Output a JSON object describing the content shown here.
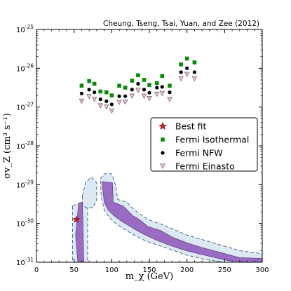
{
  "chart_data": {
    "type": "scatter",
    "title": "Cheung, Tseng, Tsai, Yuan, and Zee (2012)",
    "xlabel": "m_χ (GeV)",
    "ylabel": "σv_Z (cm³ s⁻¹)",
    "xlim": [
      0,
      300
    ],
    "ylim_log10": [
      -31,
      -25
    ],
    "y_scale": "log",
    "x_ticks": [
      0,
      50,
      100,
      150,
      200,
      250,
      300
    ],
    "y_ticks": [
      -31,
      -30,
      -29,
      -28,
      -27,
      -26,
      -25
    ],
    "legend_placement": "center-right",
    "grid": false,
    "series": [
      {
        "name": "Best fit",
        "marker": "star",
        "color": "#c81e1e",
        "points": [
          [
            53,
            -29.9
          ]
        ]
      },
      {
        "name": "Fermi Isothermal",
        "marker": "square",
        "color": "#0a8a0a",
        "points": [
          [
            60,
            -26.45
          ],
          [
            70,
            -26.33
          ],
          [
            77,
            -26.4
          ],
          [
            85,
            -26.6
          ],
          [
            93,
            -26.62
          ],
          [
            100,
            -26.7
          ],
          [
            110,
            -26.45
          ],
          [
            118,
            -26.5
          ],
          [
            127,
            -26.32
          ],
          [
            135,
            -26.18
          ],
          [
            143,
            -26.3
          ],
          [
            150,
            -26.43
          ],
          [
            160,
            -26.38
          ],
          [
            167,
            -26.2
          ],
          [
            177,
            -26.45
          ],
          [
            192,
            -25.9
          ],
          [
            200,
            -25.75
          ],
          [
            210,
            -25.85
          ]
        ]
      },
      {
        "name": "Fermi NFW",
        "marker": "circle",
        "color": "#000000",
        "points": [
          [
            60,
            -26.65
          ],
          [
            70,
            -26.55
          ],
          [
            77,
            -26.62
          ],
          [
            85,
            -26.8
          ],
          [
            93,
            -26.85
          ],
          [
            100,
            -26.93
          ],
          [
            110,
            -26.72
          ],
          [
            118,
            -26.72
          ],
          [
            127,
            -26.55
          ],
          [
            135,
            -26.4
          ],
          [
            143,
            -26.55
          ],
          [
            150,
            -26.63
          ],
          [
            160,
            -26.5
          ],
          [
            167,
            -26.48
          ],
          [
            177,
            -26.62
          ],
          [
            192,
            -26.1
          ],
          [
            200,
            -26.0
          ],
          [
            210,
            -26.1
          ]
        ]
      },
      {
        "name": "Fermi Einasto",
        "marker": "triangle-down",
        "color": "#f3b8cf",
        "points": [
          [
            60,
            -26.85
          ],
          [
            70,
            -26.73
          ],
          [
            77,
            -26.8
          ],
          [
            85,
            -26.97
          ],
          [
            93,
            -27.0
          ],
          [
            100,
            -27.1
          ],
          [
            110,
            -26.88
          ],
          [
            118,
            -26.87
          ],
          [
            127,
            -26.72
          ],
          [
            135,
            -26.57
          ],
          [
            143,
            -26.72
          ],
          [
            150,
            -26.78
          ],
          [
            160,
            -26.67
          ],
          [
            167,
            -26.65
          ],
          [
            177,
            -26.8
          ],
          [
            192,
            -26.27
          ],
          [
            200,
            -26.16
          ],
          [
            210,
            -26.27
          ]
        ]
      }
    ],
    "regions": [
      {
        "name": "allowed-region-left",
        "fill": "#9a6bc2",
        "points": [
          [
            52,
            -30.3
          ],
          [
            56,
            -29.48
          ],
          [
            61,
            -29.45
          ],
          [
            63,
            -31
          ],
          [
            55,
            -31
          ]
        ]
      },
      {
        "name": "allowed-region-right",
        "fill": "#9a6bc2",
        "points": [
          [
            87,
            -28.92
          ],
          [
            101,
            -28.95
          ],
          [
            102,
            -29.45
          ],
          [
            115,
            -29.55
          ],
          [
            122,
            -29.68
          ],
          [
            128,
            -29.8
          ],
          [
            133,
            -29.85
          ],
          [
            140,
            -29.95
          ],
          [
            148,
            -30.08
          ],
          [
            165,
            -30.18
          ],
          [
            180,
            -30.35
          ],
          [
            200,
            -30.5
          ],
          [
            220,
            -30.62
          ],
          [
            245,
            -30.75
          ],
          [
            270,
            -30.88
          ],
          [
            300,
            -30.9
          ],
          [
            300,
            -31
          ],
          [
            285,
            -31
          ],
          [
            255,
            -30.96
          ],
          [
            235,
            -30.87
          ],
          [
            215,
            -30.78
          ],
          [
            195,
            -30.68
          ],
          [
            175,
            -30.55
          ],
          [
            158,
            -30.42
          ],
          [
            145,
            -30.3
          ],
          [
            133,
            -30.18
          ],
          [
            122,
            -30.05
          ],
          [
            112,
            -29.93
          ],
          [
            103,
            -29.8
          ],
          [
            95,
            -29.65
          ],
          [
            90,
            -29.45
          ]
        ]
      },
      {
        "name": "outer-contour-left",
        "fill": "#dce9f2",
        "points": [
          [
            48,
            -29.55
          ],
          [
            60,
            -29.45
          ],
          [
            68,
            -29.6
          ],
          [
            68,
            -31
          ],
          [
            48,
            -31
          ]
        ]
      },
      {
        "name": "outer-contour-blob",
        "fill": "#dce9f2",
        "points": [
          [
            61,
            -29.3
          ],
          [
            65,
            -28.95
          ],
          [
            73,
            -28.8
          ],
          [
            80,
            -28.95
          ],
          [
            80,
            -29.4
          ],
          [
            75,
            -29.6
          ],
          [
            66,
            -29.6
          ],
          [
            61,
            -29.5
          ]
        ]
      },
      {
        "name": "outer-contour-right",
        "fill": "#dce9f2",
        "points": [
          [
            85,
            -28.85
          ],
          [
            90,
            -28.72
          ],
          [
            100,
            -28.72
          ],
          [
            105,
            -29.0
          ],
          [
            108,
            -29.38
          ],
          [
            120,
            -29.45
          ],
          [
            130,
            -29.65
          ],
          [
            148,
            -29.9
          ],
          [
            170,
            -30.05
          ],
          [
            200,
            -30.3
          ],
          [
            235,
            -30.5
          ],
          [
            270,
            -30.7
          ],
          [
            300,
            -30.78
          ],
          [
            300,
            -31
          ],
          [
            280,
            -31
          ],
          [
            250,
            -31
          ],
          [
            225,
            -30.93
          ],
          [
            200,
            -30.82
          ],
          [
            180,
            -30.68
          ],
          [
            160,
            -30.55
          ],
          [
            145,
            -30.45
          ],
          [
            130,
            -30.3
          ],
          [
            117,
            -30.15
          ],
          [
            105,
            -30.0
          ],
          [
            97,
            -29.85
          ],
          [
            90,
            -29.65
          ],
          [
            86,
            -29.3
          ]
        ]
      }
    ]
  }
}
